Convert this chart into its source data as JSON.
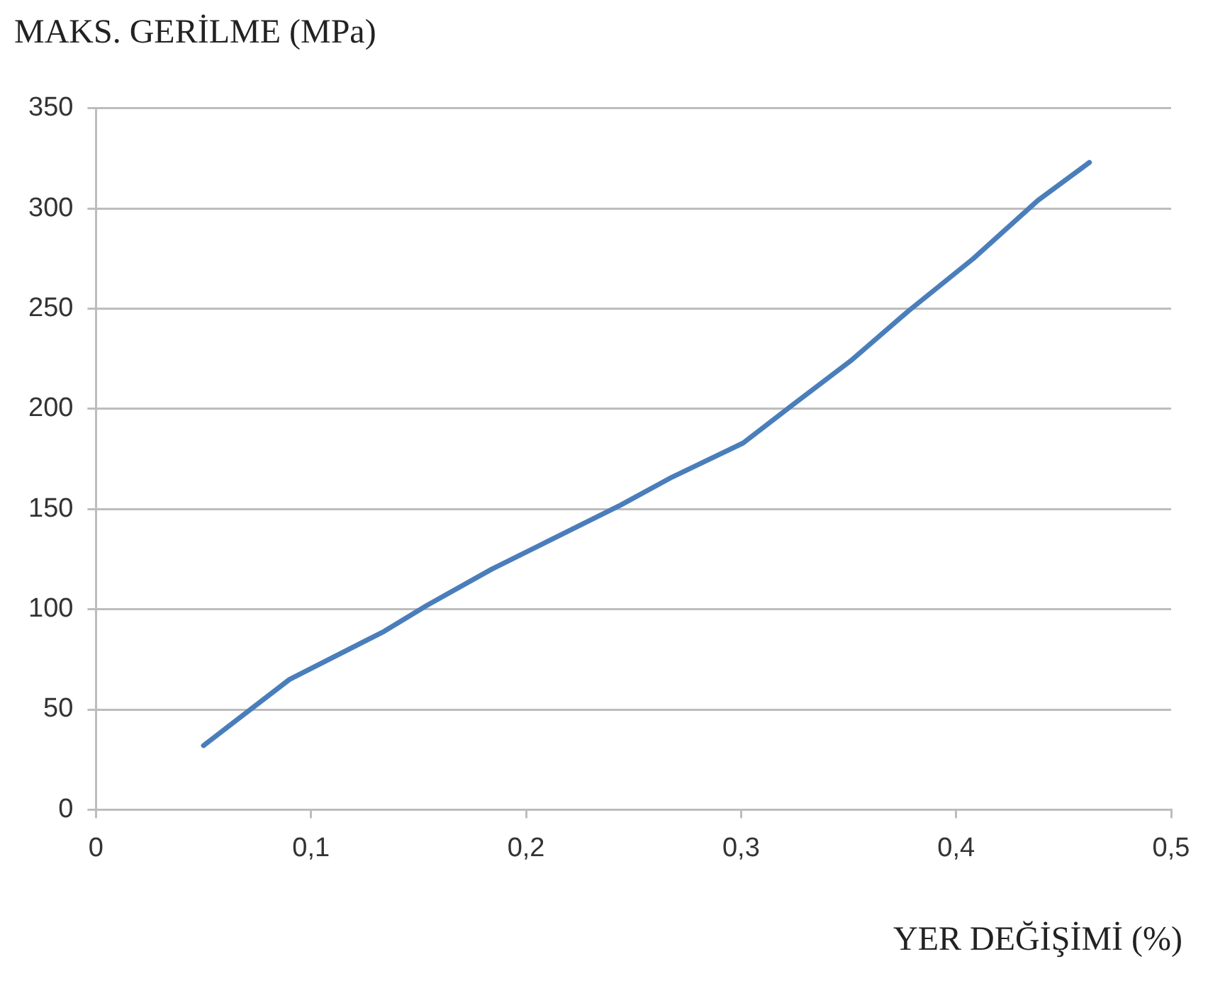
{
  "chart_data": {
    "type": "line",
    "ylabel": "MAKS. GERİLME (MPa)",
    "xlabel": "YER DEĞİŞİMİ (%)",
    "x": [
      0.05,
      0.09,
      0.134,
      0.154,
      0.184,
      0.244,
      0.268,
      0.301,
      0.324,
      0.351,
      0.378,
      0.408,
      0.438,
      0.462
    ],
    "series": [
      {
        "color": "#4a7ebb",
        "values": [
          32,
          65,
          89,
          102,
          120,
          152,
          166,
          183,
          202,
          224,
          249,
          275,
          304,
          323
        ]
      }
    ],
    "xlim": [
      0,
      0.5
    ],
    "xticks": [
      0,
      {
        "value": 0.1,
        "label": "0,1"
      },
      {
        "value": 0.2,
        "label": "0,2"
      },
      {
        "value": 0.3,
        "label": "0,3"
      },
      {
        "value": 0.4,
        "label": "0,4"
      },
      {
        "value": 0.5,
        "label": "0,5"
      }
    ],
    "ylim": [
      0,
      350
    ],
    "yticks": [
      0,
      50,
      100,
      150,
      200,
      250,
      300,
      350
    ],
    "grid": "y",
    "legend": false,
    "marker": "none",
    "line_style": "solid"
  }
}
